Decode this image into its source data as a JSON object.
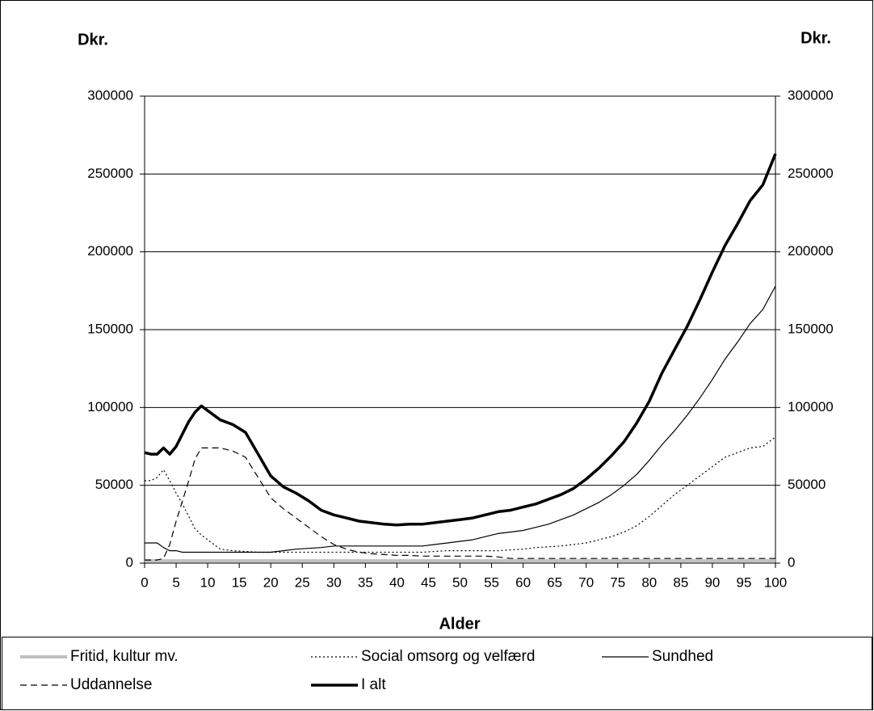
{
  "chart_data": {
    "type": "line",
    "y_label_left": "Dkr.",
    "y_label_right": "Dkr.",
    "x_label": "Alder",
    "x": [
      0,
      1,
      2,
      3,
      4,
      5,
      6,
      7,
      8,
      9,
      10,
      12,
      14,
      16,
      18,
      20,
      22,
      24,
      26,
      28,
      30,
      32,
      34,
      36,
      38,
      40,
      42,
      44,
      46,
      48,
      50,
      52,
      54,
      56,
      58,
      60,
      62,
      64,
      66,
      68,
      70,
      72,
      74,
      76,
      78,
      80,
      82,
      84,
      86,
      88,
      90,
      92,
      94,
      96,
      98,
      100
    ],
    "series": [
      {
        "name": "Fritid, kultur mv.",
        "color": "#c0c0c0",
        "values": [
          1500,
          1500,
          1500,
          1500,
          1500,
          1500,
          1500,
          1500,
          1500,
          1500,
          1500,
          1500,
          1500,
          1500,
          1500,
          1500,
          1500,
          1500,
          1500,
          1500,
          1500,
          1500,
          1500,
          1500,
          1500,
          1500,
          1500,
          1500,
          1500,
          1500,
          1500,
          1500,
          1500,
          1500,
          1500,
          1500,
          1500,
          1500,
          1500,
          1500,
          1500,
          1500,
          1500,
          1500,
          1500,
          1500,
          1500,
          1500,
          1500,
          1500,
          1500,
          1500,
          1500,
          1500,
          1500,
          1500
        ]
      },
      {
        "name": "Social omsorg og velfærd",
        "color": "#000000",
        "values": [
          53000,
          53000,
          55000,
          60000,
          53000,
          45000,
          38000,
          30000,
          22000,
          18000,
          15000,
          9000,
          8000,
          7500,
          7000,
          7000,
          7000,
          7000,
          7000,
          7000,
          7000,
          7000,
          7000,
          7000,
          7000,
          7000,
          7000,
          7000,
          7500,
          8000,
          8000,
          8000,
          8000,
          8000,
          8500,
          9000,
          10000,
          10500,
          11000,
          12000,
          13000,
          15000,
          17000,
          20000,
          24000,
          30000,
          37000,
          44000,
          50000,
          56000,
          62000,
          68000,
          71000,
          74000,
          75000,
          81000
        ]
      },
      {
        "name": "Sundhed",
        "color": "#000000",
        "values": [
          13000,
          13000,
          13000,
          10000,
          8000,
          8000,
          7000,
          7000,
          7000,
          7000,
          7000,
          7000,
          7000,
          7000,
          7000,
          7000,
          8000,
          9000,
          9500,
          10000,
          11000,
          11000,
          11000,
          11000,
          11000,
          11000,
          11000,
          11000,
          12000,
          13000,
          14000,
          15000,
          17000,
          19000,
          20000,
          21000,
          23000,
          25000,
          28000,
          31000,
          35000,
          39000,
          44000,
          50000,
          57000,
          66000,
          76000,
          85000,
          95000,
          106000,
          118000,
          131000,
          142000,
          154000,
          163000,
          178000
        ]
      },
      {
        "name": "Uddannelse",
        "color": "#000000",
        "values": [
          2000,
          2000,
          2000,
          3000,
          12000,
          27000,
          40000,
          53000,
          67000,
          74000,
          74000,
          74000,
          72000,
          68000,
          55000,
          42000,
          35000,
          29000,
          23000,
          17000,
          12000,
          9000,
          7000,
          6000,
          5500,
          5000,
          5000,
          4500,
          4500,
          4500,
          4500,
          4500,
          4500,
          4000,
          3000,
          3000,
          3000,
          3000,
          3000,
          3000,
          3000,
          3000,
          3000,
          3000,
          3000,
          3000,
          3000,
          3000,
          3000,
          3000,
          3000,
          3000,
          3000,
          3000,
          3000,
          3000
        ]
      },
      {
        "name": "I alt",
        "color": "#000000",
        "values": [
          71000,
          70000,
          70000,
          74000,
          70000,
          75000,
          83000,
          91000,
          97000,
          101000,
          98000,
          92000,
          89000,
          84000,
          70000,
          56000,
          49000,
          45000,
          40000,
          34000,
          31000,
          29000,
          27000,
          26000,
          25000,
          24500,
          25000,
          25000,
          26000,
          27000,
          28000,
          29000,
          31000,
          33000,
          34000,
          36000,
          38000,
          41000,
          44000,
          48000,
          54000,
          61000,
          69000,
          78000,
          90000,
          104000,
          122000,
          137000,
          152000,
          169000,
          187000,
          204000,
          218000,
          233000,
          243000,
          263000
        ]
      }
    ],
    "xlim": [
      0,
      100
    ],
    "xticks": [
      0,
      5,
      10,
      15,
      20,
      25,
      30,
      35,
      40,
      45,
      50,
      55,
      60,
      65,
      70,
      75,
      80,
      85,
      90,
      95,
      100
    ],
    "ylim": [
      0,
      300000
    ],
    "yticks": [
      0,
      50000,
      100000,
      150000,
      200000,
      250000,
      300000
    ],
    "y2lim": [
      0,
      300000
    ],
    "y2ticks": [
      0,
      50000,
      100000,
      150000,
      200000,
      250000,
      300000
    ],
    "grid": true
  }
}
